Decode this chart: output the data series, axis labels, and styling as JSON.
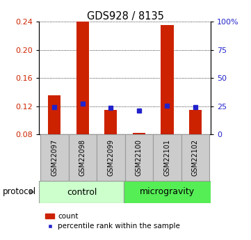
{
  "title": "GDS928 / 8135",
  "samples": [
    "GSM22097",
    "GSM22098",
    "GSM22099",
    "GSM22100",
    "GSM22101",
    "GSM22102"
  ],
  "red_bar_top": [
    0.135,
    0.24,
    0.115,
    0.082,
    0.235,
    0.115
  ],
  "red_bar_bottom": [
    0.08,
    0.08,
    0.08,
    0.08,
    0.08,
    0.08
  ],
  "blue_square_y": [
    0.119,
    0.124,
    0.118,
    0.114,
    0.121,
    0.119
  ],
  "ylim": [
    0.08,
    0.24
  ],
  "yticks_left": [
    0.08,
    0.12,
    0.16,
    0.2,
    0.24
  ],
  "yticks_right_vals": [
    0,
    25,
    50,
    75,
    100
  ],
  "yticks_right_labels": [
    "0",
    "25",
    "50",
    "75",
    "100%"
  ],
  "bar_color": "#cc2200",
  "blue_color": "#2222cc",
  "control_color": "#ccffcc",
  "microgravity_color": "#55ee55",
  "sample_box_color": "#cccccc",
  "sample_box_edge": "#999999",
  "group_label_control": "control",
  "group_label_micro": "microgravity",
  "legend_count": "count",
  "legend_pct": "percentile rank within the sample",
  "protocol_label": "protocol",
  "grid_vals": [
    0.12,
    0.16,
    0.2,
    0.24
  ]
}
